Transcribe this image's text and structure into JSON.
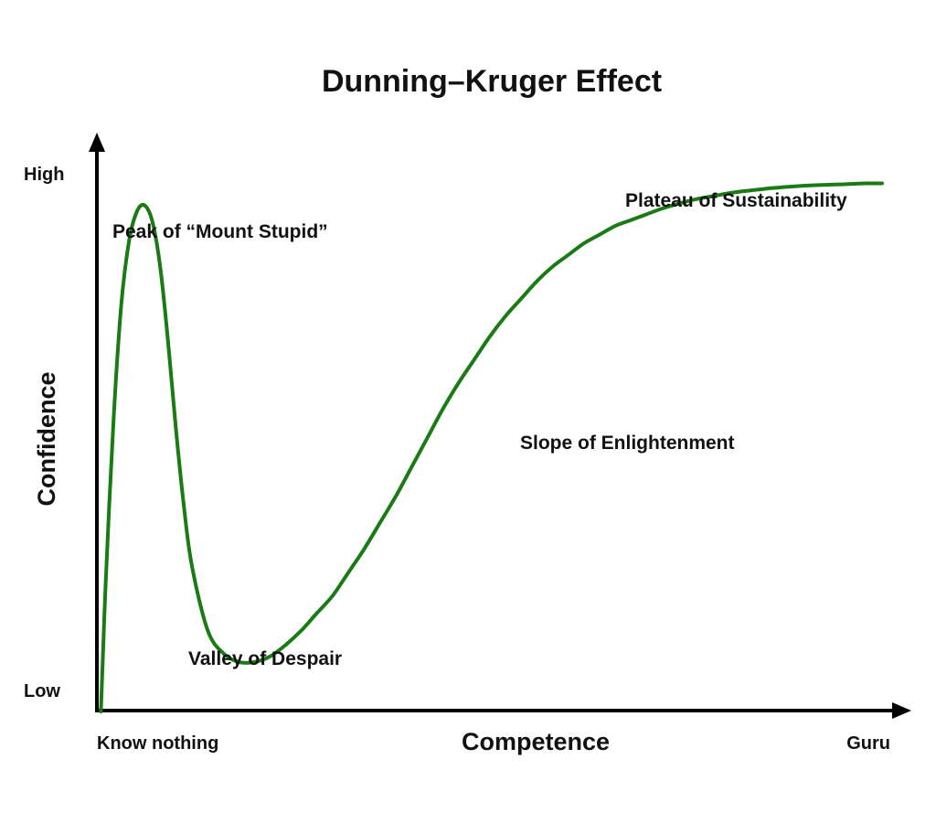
{
  "chart_data": {
    "type": "line",
    "title": "Dunning–Kruger Effect",
    "xlabel": "Competence",
    "ylabel": "Confidence",
    "x_tick_labels": [
      "Know nothing",
      "Guru"
    ],
    "y_tick_labels": [
      "High",
      "Low"
    ],
    "xlim": [
      0,
      100
    ],
    "ylim": [
      0,
      100
    ],
    "grid": false,
    "series": [
      {
        "color": "#1a7a14",
        "x": [
          0.4,
          1,
          2,
          3,
          4,
          5,
          6,
          7,
          8,
          9,
          10,
          11,
          12,
          14,
          16,
          18,
          20,
          22,
          24,
          26,
          28,
          30,
          32,
          34,
          36,
          38,
          40,
          42,
          44,
          46,
          48,
          50,
          52,
          54,
          56,
          58,
          60,
          62,
          64,
          66,
          68,
          70,
          72,
          74,
          76,
          78,
          80,
          82,
          84,
          86,
          88,
          90,
          92,
          94,
          96,
          98,
          100
        ],
        "y": [
          0,
          22,
          50,
          70,
          81,
          86,
          87,
          84,
          76,
          63,
          48,
          35,
          25,
          14,
          10,
          8.5,
          8.5,
          9.5,
          11.5,
          14,
          17,
          20,
          24,
          28,
          32.5,
          37,
          42,
          47,
          52,
          56.5,
          60.5,
          64.5,
          68,
          71,
          74,
          76.5,
          78.5,
          80.5,
          82,
          83.5,
          84.5,
          85.5,
          86.5,
          87.3,
          88,
          88.5,
          89,
          89.4,
          89.7,
          90,
          90.2,
          90.4,
          90.5,
          90.6,
          90.7,
          90.8,
          90.8
        ]
      }
    ],
    "annotations": [
      {
        "text": "Peak of “Mount Stupid”",
        "x": 6,
        "y": 87
      },
      {
        "text": "Valley of Despair",
        "x": 19,
        "y": 8.5
      },
      {
        "text": "Slope of Enlightenment",
        "x": 54,
        "y": 53
      },
      {
        "text": "Plateau of Sustainability",
        "x": 90,
        "y": 90.6
      }
    ]
  },
  "colors": {
    "curve": "#1a7a14",
    "axis": "#000000",
    "text": "#111111"
  }
}
